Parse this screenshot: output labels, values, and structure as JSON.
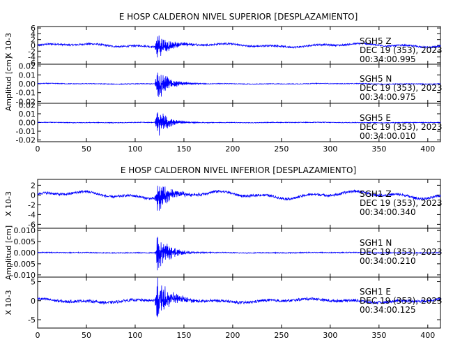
{
  "chart_data": [
    {
      "type": "line",
      "title": "E HOSP CALDERON NIVEL SUPERIOR [DESPLAZAMIENTO]",
      "x_ticks": [
        "0",
        "50",
        "100",
        "150",
        "200",
        "250",
        "300",
        "350",
        "400"
      ],
      "xlim": [
        0,
        413
      ],
      "grid": false,
      "ylabel_parts": [
        {
          "text": "X 10-3",
          "panel": 0
        },
        {
          "text": "Amplitud [cm]",
          "panel": 1
        }
      ],
      "panels": [
        {
          "component": "Z",
          "info": [
            "SGH5    Z",
            "DEC 19 (353), 2023",
            "00:34:00.995"
          ],
          "ylim": [
            -6.5,
            6.5
          ],
          "y_ticks": [
            "6",
            "4",
            "2",
            "0",
            "-2",
            "-4",
            "-6"
          ],
          "y_values": [
            6,
            4,
            2,
            0,
            -2,
            -4,
            -6
          ],
          "event": {
            "onset": 120,
            "peak_time": 122,
            "peak": 4.8,
            "decay": 14,
            "noise": 0.3,
            "drift": 0.5
          }
        },
        {
          "component": "N",
          "info": [
            "SGH5    N",
            "DEC 19 (353), 2023",
            "00:34:00.975"
          ],
          "ylim": [
            -0.022,
            0.022
          ],
          "y_ticks": [
            "0.02",
            "0.01",
            "0.00",
            "-0.01",
            "-0.02"
          ],
          "y_values": [
            0.02,
            0.01,
            0.0,
            -0.01,
            -0.02
          ],
          "event": {
            "onset": 120,
            "peak_time": 123,
            "peak": 0.019,
            "decay": 12,
            "noise": 0.0004,
            "drift": 0.0003
          }
        },
        {
          "component": "E",
          "info": [
            "SGH5    E",
            "DEC 19 (353), 2023",
            "00:34:00.010"
          ],
          "ylim": [
            -0.022,
            0.022
          ],
          "y_ticks": [
            "0.02",
            "0.01",
            "0.00",
            "-0.01",
            "-0.02"
          ],
          "y_values": [
            0.02,
            0.01,
            0.0,
            -0.01,
            -0.02
          ],
          "event": {
            "onset": 120,
            "peak_time": 123,
            "peak": 0.018,
            "decay": 11,
            "noise": 0.0004,
            "drift": 0.0002
          }
        }
      ]
    },
    {
      "type": "line",
      "title": "E HOSP CALDERON NIVEL INFERIOR [DESPLAZAMIENTO]",
      "x_ticks": [
        "0",
        "50",
        "100",
        "150",
        "200",
        "250",
        "300",
        "350",
        "400"
      ],
      "xlim": [
        0,
        413
      ],
      "grid": false,
      "ylabel_parts": [
        {
          "text": "X 10-3",
          "panel": 0
        },
        {
          "text": "Amplitud [cm]",
          "panel": 1
        },
        {
          "text": "X 10-3",
          "panel": 2
        }
      ],
      "panels": [
        {
          "component": "Z",
          "info": [
            "SGH1    Z",
            "DEC 19 (353), 2023",
            "00:34:00.340"
          ],
          "ylim": [
            -6.8,
            3.2
          ],
          "y_ticks": [
            "2",
            "0",
            "-2",
            "-4",
            "-6"
          ],
          "y_values": [
            2,
            0,
            -2,
            -4,
            -6
          ],
          "event": {
            "onset": 120,
            "peak_time": 123,
            "peak": 3.0,
            "decay": 15,
            "noise": 0.25,
            "drift": 0.6
          }
        },
        {
          "component": "N",
          "info": [
            "SGH1    N",
            "DEC 19 (353), 2023",
            "00:34:00.210"
          ],
          "ylim": [
            -0.011,
            0.011
          ],
          "y_ticks": [
            "0.010",
            "0.005",
            "0.000",
            "-0.005",
            "-0.010"
          ],
          "y_values": [
            0.01,
            0.005,
            0.0,
            -0.005,
            -0.01
          ],
          "event": {
            "onset": 120,
            "peak_time": 123,
            "peak": 0.0095,
            "decay": 12,
            "noise": 0.0002,
            "drift": 0.0001
          }
        },
        {
          "component": "E",
          "info": [
            "SGH1    E",
            "DEC 19 (353), 2023",
            "00:34:00.125"
          ],
          "ylim": [
            -7.2,
            6.2
          ],
          "y_ticks": [
            "5",
            "0",
            "-5"
          ],
          "y_values": [
            5,
            0,
            -5
          ],
          "event": {
            "onset": 120,
            "peak_time": 123,
            "peak": 6.0,
            "decay": 13,
            "noise": 0.35,
            "drift": 0.4
          }
        }
      ]
    }
  ]
}
